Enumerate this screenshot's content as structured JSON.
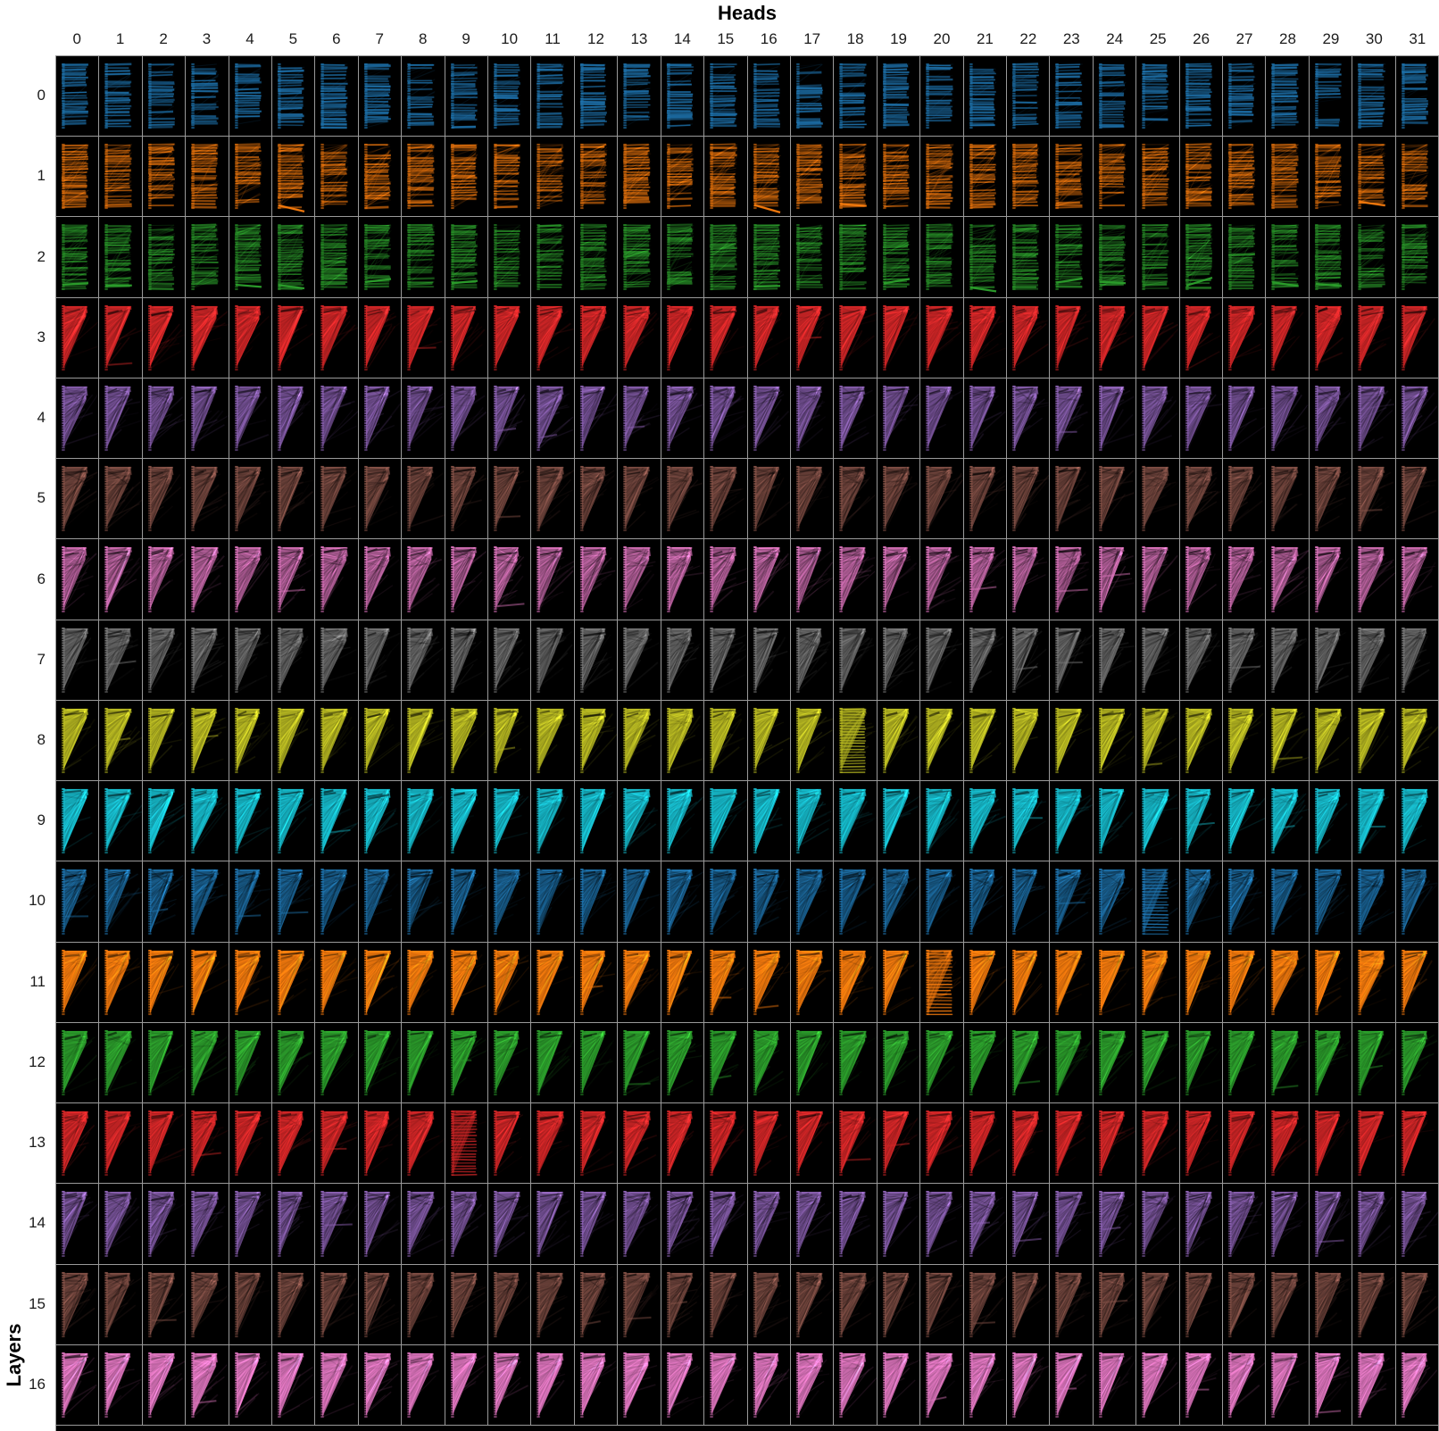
{
  "figure": {
    "page_background": "#ffffff",
    "panel_background": "#000000",
    "gridline_color": "#9a9a9a",
    "label_color": "#1c1c1c"
  },
  "chart_data": {
    "type": "heatmap",
    "subtype": "attention-pattern-small-multiples",
    "title": "Heads",
    "xlabel": "Heads",
    "ylabel": "Layers",
    "n_heads": 32,
    "n_layers": 17,
    "col_labels": [
      "0",
      "1",
      "2",
      "3",
      "4",
      "5",
      "6",
      "7",
      "8",
      "9",
      "10",
      "11",
      "12",
      "13",
      "14",
      "15",
      "16",
      "17",
      "18",
      "19",
      "20",
      "21",
      "22",
      "23",
      "24",
      "25",
      "26",
      "27",
      "28",
      "29",
      "30",
      "31"
    ],
    "row_labels": [
      "0",
      "1",
      "2",
      "3",
      "4",
      "5",
      "6",
      "7",
      "8",
      "9",
      "10",
      "11",
      "12",
      "13",
      "14",
      "15",
      "16"
    ],
    "layers": [
      {
        "layer": "0",
        "color": "#1f77b4",
        "pattern": "horizontal-stripes"
      },
      {
        "layer": "1",
        "color": "#ff7f0e",
        "pattern": "stripes-diagonal"
      },
      {
        "layer": "2",
        "color": "#2ca02c",
        "pattern": "stripes-diagonal"
      },
      {
        "layer": "3",
        "color": "#d62728",
        "pattern": "fan"
      },
      {
        "layer": "4",
        "color": "#9467bd",
        "pattern": "fan-textured"
      },
      {
        "layer": "5",
        "color": "#8c564b",
        "pattern": "fan-textured"
      },
      {
        "layer": "6",
        "color": "#e377c2",
        "pattern": "fan-textured"
      },
      {
        "layer": "7",
        "color": "#7f7f7f",
        "pattern": "fan-textured"
      },
      {
        "layer": "8",
        "color": "#bcbd22",
        "pattern": "fan"
      },
      {
        "layer": "9",
        "color": "#17becf",
        "pattern": "fan"
      },
      {
        "layer": "10",
        "color": "#1f77b4",
        "pattern": "fan-textured"
      },
      {
        "layer": "11",
        "color": "#ff7f0e",
        "pattern": "fan"
      },
      {
        "layer": "12",
        "color": "#2ca02c",
        "pattern": "fan"
      },
      {
        "layer": "13",
        "color": "#d62728",
        "pattern": "fan"
      },
      {
        "layer": "14",
        "color": "#9467bd",
        "pattern": "fan-textured"
      },
      {
        "layer": "15",
        "color": "#8c564b",
        "pattern": "fan-textured"
      },
      {
        "layer": "16",
        "color": "#e377c2",
        "pattern": "fan"
      }
    ],
    "special_cells": [
      {
        "layer": 8,
        "head": 18,
        "pattern": "ladder-stripes"
      },
      {
        "layer": 10,
        "head": 25,
        "pattern": "ladder-stripes"
      },
      {
        "layer": 11,
        "head": 20,
        "pattern": "ladder-stripes"
      },
      {
        "layer": 13,
        "head": 9,
        "pattern": "ladder-stripes"
      }
    ]
  }
}
